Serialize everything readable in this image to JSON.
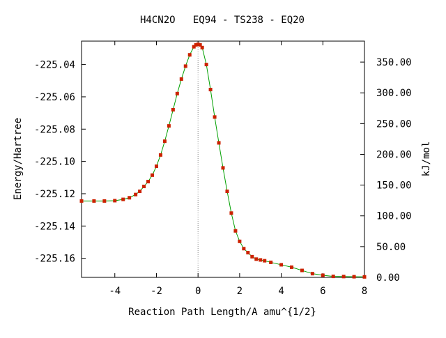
{
  "chart_data": {
    "type": "line",
    "title": "H4CN2O   EQ94 - TS238 - EQ20",
    "xlabel": "Reaction Path Length/A amu^{1/2}",
    "ylabel": "Energy/Hartree",
    "y2label": "kJ/mol",
    "xlim": [
      -5.6,
      8.0
    ],
    "ylim": [
      -225.1718,
      -225.0255
    ],
    "y2lim": [
      0.0,
      384.1
    ],
    "xticks": [
      -4,
      -2,
      0,
      2,
      4,
      6,
      8
    ],
    "xtick_labels": [
      "-4",
      "-2",
      "0",
      "2",
      "4",
      "6",
      "8"
    ],
    "yticks": [
      -225.04,
      -225.06,
      -225.08,
      -225.1,
      -225.12,
      -225.14,
      -225.16
    ],
    "ytick_labels": [
      "-225.04",
      "-225.06",
      "-225.08",
      "-225.10",
      "-225.12",
      "-225.14",
      "-225.16"
    ],
    "y2ticks": [
      0,
      50,
      100,
      150,
      200,
      250,
      300,
      350
    ],
    "y2tick_labels": [
      "0.00",
      "50.00",
      "100.00",
      "150.00",
      "200.00",
      "250.00",
      "300.00",
      "350.00"
    ],
    "ts_marker_x": 0.0,
    "grid": false,
    "line_color": "#00a000",
    "marker_color": "#cc2200",
    "ts_line_color": "#888888",
    "series": [
      {
        "x": [
          -5.6,
          -5.0,
          -4.5,
          -4.0,
          -3.6,
          -3.3,
          -3.0,
          -2.8,
          -2.6,
          -2.4,
          -2.2,
          -2.0,
          -1.8,
          -1.6,
          -1.4,
          -1.2,
          -1.0,
          -0.8,
          -0.6,
          -0.4,
          -0.2,
          -0.1,
          0.0,
          0.1,
          0.2,
          0.4,
          0.6,
          0.8,
          1.0,
          1.2,
          1.4,
          1.6,
          1.8,
          2.0,
          2.2,
          2.4,
          2.6,
          2.8,
          3.0,
          3.2,
          3.5,
          4.0,
          4.5,
          5.0,
          5.5,
          6.0,
          6.5,
          7.0,
          7.5,
          8.0
        ],
        "y": [
          -225.1245,
          -225.1245,
          -225.1245,
          -225.1243,
          -225.1235,
          -225.1225,
          -225.1205,
          -225.1185,
          -225.1155,
          -225.1125,
          -225.1085,
          -225.103,
          -225.096,
          -225.0875,
          -225.078,
          -225.068,
          -225.058,
          -225.049,
          -225.041,
          -225.034,
          -225.029,
          -225.0278,
          -225.0275,
          -225.0278,
          -225.0295,
          -225.04,
          -225.0555,
          -225.0725,
          -225.0885,
          -225.104,
          -225.1185,
          -225.132,
          -225.143,
          -225.1495,
          -225.154,
          -225.1565,
          -225.159,
          -225.1605,
          -225.161,
          -225.1615,
          -225.1625,
          -225.164,
          -225.1655,
          -225.1675,
          -225.1695,
          -225.1705,
          -225.1712,
          -225.1713,
          -225.1714,
          -225.1715
        ]
      }
    ]
  }
}
